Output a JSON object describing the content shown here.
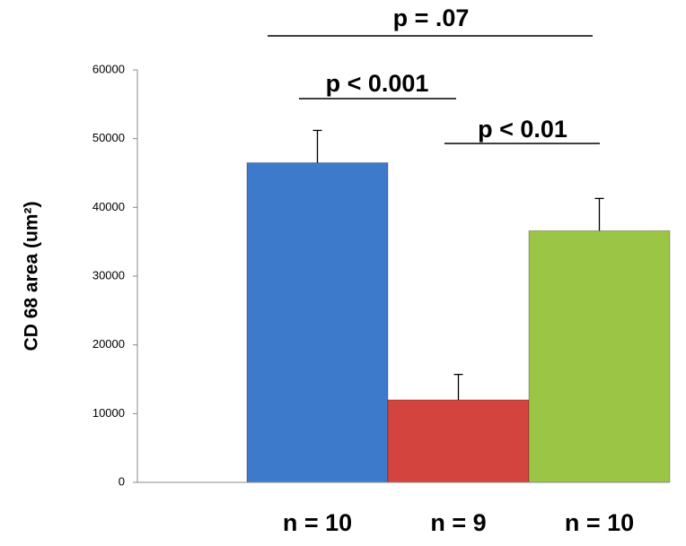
{
  "chart_data": {
    "type": "bar",
    "y_label": "CD 68 area (um²)",
    "categories": [
      "n = 10",
      "n = 9",
      "n = 10"
    ],
    "values": [
      46500,
      12000,
      36600
    ],
    "errors": [
      4700,
      3700,
      4700
    ],
    "colors": [
      "#3d7acb",
      "#d4443f",
      "#9bc544"
    ],
    "ylim": [
      0,
      60000
    ],
    "yticks": [
      0,
      10000,
      20000,
      30000,
      40000,
      50000,
      60000
    ],
    "annotations": [
      "p = .07",
      "p < 0.001",
      "p < 0.01"
    ]
  }
}
